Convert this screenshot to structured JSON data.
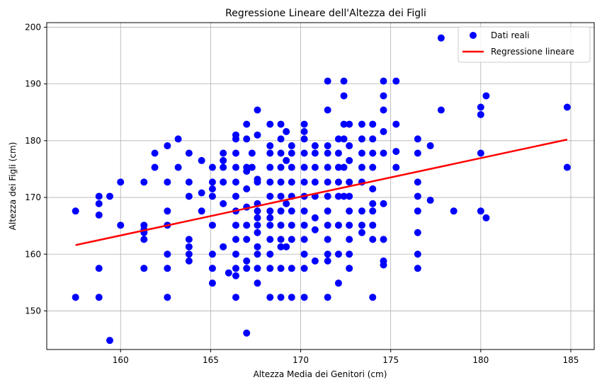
{
  "chart_data": {
    "type": "scatter",
    "title": "Regressione Lineare dell'Altezza dei Figli",
    "xlabel": "Altezza Media dei Genitori (cm)",
    "ylabel": "Altezza dei Figli (cm)",
    "xlim": [
      155.9,
      186.3
    ],
    "ylim": [
      143.2,
      200.8
    ],
    "xticks": [
      160,
      165,
      170,
      175,
      180,
      185
    ],
    "yticks": [
      150,
      160,
      170,
      180,
      190,
      200
    ],
    "grid": true,
    "legend_position": "top-right",
    "series": [
      {
        "name": "Dati reali",
        "kind": "scatter",
        "color": "#0000ff",
        "points": [
          [
            157.5,
            167.6
          ],
          [
            157.5,
            152.4
          ],
          [
            158.8,
            170.2
          ],
          [
            158.8,
            168.9
          ],
          [
            158.8,
            166.9
          ],
          [
            158.8,
            157.5
          ],
          [
            158.8,
            152.4
          ],
          [
            159.4,
            170.2
          ],
          [
            159.4,
            144.8
          ],
          [
            160.0,
            172.7
          ],
          [
            160.0,
            165.1
          ],
          [
            161.3,
            172.7
          ],
          [
            161.3,
            165.1
          ],
          [
            161.3,
            164.3
          ],
          [
            161.3,
            163.8
          ],
          [
            161.3,
            162.6
          ],
          [
            161.3,
            157.5
          ],
          [
            161.9,
            177.8
          ],
          [
            161.9,
            175.3
          ],
          [
            162.6,
            179.1
          ],
          [
            162.6,
            172.7
          ],
          [
            162.6,
            167.6
          ],
          [
            162.6,
            165.1
          ],
          [
            162.6,
            160.0
          ],
          [
            162.6,
            157.5
          ],
          [
            162.6,
            152.4
          ],
          [
            163.2,
            180.3
          ],
          [
            163.2,
            175.3
          ],
          [
            163.8,
            177.8
          ],
          [
            163.8,
            172.7
          ],
          [
            163.8,
            170.2
          ],
          [
            163.8,
            162.6
          ],
          [
            163.8,
            161.3
          ],
          [
            163.8,
            160.0
          ],
          [
            163.8,
            158.8
          ],
          [
            164.5,
            176.5
          ],
          [
            164.5,
            170.8
          ],
          [
            164.5,
            167.6
          ],
          [
            165.1,
            175.3
          ],
          [
            165.1,
            172.7
          ],
          [
            165.1,
            171.5
          ],
          [
            165.1,
            170.2
          ],
          [
            165.1,
            165.1
          ],
          [
            165.1,
            160.0
          ],
          [
            165.1,
            157.5
          ],
          [
            165.1,
            154.9
          ],
          [
            165.7,
            177.8
          ],
          [
            165.7,
            176.5
          ],
          [
            165.7,
            175.3
          ],
          [
            165.7,
            172.7
          ],
          [
            165.7,
            168.9
          ],
          [
            165.7,
            161.3
          ],
          [
            166.0,
            156.7
          ],
          [
            166.4,
            181.0
          ],
          [
            166.4,
            180.3
          ],
          [
            166.4,
            177.8
          ],
          [
            166.4,
            175.3
          ],
          [
            166.4,
            172.7
          ],
          [
            166.4,
            170.2
          ],
          [
            166.4,
            167.6
          ],
          [
            166.4,
            165.1
          ],
          [
            166.4,
            162.6
          ],
          [
            166.4,
            160.0
          ],
          [
            166.4,
            157.5
          ],
          [
            166.4,
            156.2
          ],
          [
            166.4,
            152.4
          ],
          [
            167.0,
            182.9
          ],
          [
            167.0,
            180.3
          ],
          [
            167.0,
            175.3
          ],
          [
            167.0,
            174.6
          ],
          [
            167.0,
            171.5
          ],
          [
            167.0,
            168.3
          ],
          [
            167.0,
            165.1
          ],
          [
            167.0,
            162.6
          ],
          [
            167.0,
            158.8
          ],
          [
            167.0,
            157.5
          ],
          [
            167.0,
            146.1
          ],
          [
            167.3,
            177.8
          ],
          [
            167.3,
            175.3
          ],
          [
            167.6,
            181.0
          ],
          [
            167.6,
            172.7
          ],
          [
            167.6,
            167.6
          ],
          [
            167.6,
            165.1
          ],
          [
            167.6,
            163.8
          ],
          [
            167.6,
            160.0
          ],
          [
            167.6,
            157.5
          ],
          [
            167.6,
            185.4
          ],
          [
            167.6,
            173.2
          ],
          [
            167.6,
            168.9
          ],
          [
            167.6,
            166.4
          ],
          [
            167.6,
            161.3
          ],
          [
            167.6,
            154.9
          ],
          [
            168.3,
            182.9
          ],
          [
            168.3,
            179.1
          ],
          [
            168.3,
            177.8
          ],
          [
            168.3,
            175.3
          ],
          [
            168.3,
            172.7
          ],
          [
            168.3,
            170.2
          ],
          [
            168.3,
            167.6
          ],
          [
            168.3,
            166.4
          ],
          [
            168.3,
            165.1
          ],
          [
            168.3,
            162.6
          ],
          [
            168.3,
            160.0
          ],
          [
            168.3,
            157.5
          ],
          [
            168.3,
            152.4
          ],
          [
            168.9,
            182.9
          ],
          [
            168.9,
            180.3
          ],
          [
            168.9,
            177.8
          ],
          [
            168.9,
            175.3
          ],
          [
            168.9,
            172.7
          ],
          [
            168.9,
            170.2
          ],
          [
            168.9,
            167.6
          ],
          [
            168.9,
            165.1
          ],
          [
            168.9,
            162.6
          ],
          [
            168.9,
            161.3
          ],
          [
            168.9,
            157.5
          ],
          [
            168.9,
            152.4
          ],
          [
            169.2,
            181.6
          ],
          [
            169.2,
            176.5
          ],
          [
            169.2,
            168.9
          ],
          [
            169.2,
            161.3
          ],
          [
            169.5,
            179.1
          ],
          [
            169.5,
            177.8
          ],
          [
            169.5,
            175.3
          ],
          [
            169.5,
            172.7
          ],
          [
            169.5,
            170.2
          ],
          [
            169.5,
            167.6
          ],
          [
            169.5,
            165.1
          ],
          [
            169.5,
            162.6
          ],
          [
            169.5,
            157.5
          ],
          [
            169.5,
            152.4
          ],
          [
            170.2,
            182.9
          ],
          [
            170.2,
            181.6
          ],
          [
            170.2,
            180.3
          ],
          [
            170.2,
            177.8
          ],
          [
            170.2,
            175.3
          ],
          [
            170.2,
            172.7
          ],
          [
            170.2,
            170.2
          ],
          [
            170.2,
            167.6
          ],
          [
            170.2,
            165.1
          ],
          [
            170.2,
            162.6
          ],
          [
            170.2,
            160.0
          ],
          [
            170.2,
            157.5
          ],
          [
            170.2,
            152.4
          ],
          [
            170.8,
            179.1
          ],
          [
            170.8,
            177.8
          ],
          [
            170.8,
            175.3
          ],
          [
            170.8,
            172.7
          ],
          [
            170.8,
            170.2
          ],
          [
            170.8,
            166.4
          ],
          [
            170.8,
            164.3
          ],
          [
            170.8,
            158.8
          ],
          [
            171.5,
            190.5
          ],
          [
            171.5,
            185.4
          ],
          [
            171.5,
            179.1
          ],
          [
            171.5,
            177.8
          ],
          [
            171.5,
            175.3
          ],
          [
            171.5,
            172.7
          ],
          [
            171.5,
            170.2
          ],
          [
            171.5,
            167.6
          ],
          [
            171.5,
            165.1
          ],
          [
            171.5,
            162.6
          ],
          [
            171.5,
            160.0
          ],
          [
            171.5,
            158.8
          ],
          [
            171.5,
            152.4
          ],
          [
            172.1,
            180.3
          ],
          [
            172.1,
            177.8
          ],
          [
            172.1,
            175.3
          ],
          [
            172.1,
            172.7
          ],
          [
            172.1,
            170.2
          ],
          [
            172.1,
            165.1
          ],
          [
            172.1,
            160.0
          ],
          [
            172.1,
            154.9
          ],
          [
            172.4,
            190.5
          ],
          [
            172.4,
            187.9
          ],
          [
            172.4,
            182.9
          ],
          [
            172.4,
            180.3
          ],
          [
            172.4,
            175.3
          ],
          [
            172.4,
            170.2
          ],
          [
            172.7,
            182.9
          ],
          [
            172.7,
            179.1
          ],
          [
            172.7,
            176.5
          ],
          [
            172.7,
            172.7
          ],
          [
            172.7,
            170.2
          ],
          [
            172.7,
            167.6
          ],
          [
            172.7,
            165.1
          ],
          [
            172.7,
            162.6
          ],
          [
            172.7,
            160.0
          ],
          [
            172.7,
            157.5
          ],
          [
            173.4,
            182.9
          ],
          [
            173.4,
            180.3
          ],
          [
            173.4,
            177.8
          ],
          [
            173.4,
            175.3
          ],
          [
            173.4,
            172.7
          ],
          [
            173.4,
            167.6
          ],
          [
            173.4,
            165.1
          ],
          [
            173.4,
            163.8
          ],
          [
            174.0,
            182.9
          ],
          [
            174.0,
            180.3
          ],
          [
            174.0,
            177.8
          ],
          [
            174.0,
            175.3
          ],
          [
            174.0,
            171.5
          ],
          [
            174.0,
            168.9
          ],
          [
            174.0,
            167.6
          ],
          [
            174.0,
            165.1
          ],
          [
            174.0,
            162.6
          ],
          [
            174.0,
            152.4
          ],
          [
            174.6,
            190.5
          ],
          [
            174.6,
            187.9
          ],
          [
            174.6,
            185.4
          ],
          [
            174.6,
            181.6
          ],
          [
            174.6,
            177.8
          ],
          [
            174.6,
            168.9
          ],
          [
            174.6,
            162.6
          ],
          [
            174.6,
            158.8
          ],
          [
            174.6,
            158.1
          ],
          [
            175.3,
            190.5
          ],
          [
            175.3,
            182.9
          ],
          [
            175.3,
            178.1
          ],
          [
            175.3,
            175.3
          ],
          [
            176.5,
            180.3
          ],
          [
            176.5,
            177.8
          ],
          [
            176.5,
            172.7
          ],
          [
            176.5,
            170.2
          ],
          [
            176.5,
            167.6
          ],
          [
            176.5,
            163.8
          ],
          [
            176.5,
            160.0
          ],
          [
            176.5,
            157.5
          ],
          [
            177.2,
            179.1
          ],
          [
            177.2,
            169.5
          ],
          [
            177.8,
            198.1
          ],
          [
            177.8,
            185.4
          ],
          [
            178.5,
            167.6
          ],
          [
            180.0,
            185.9
          ],
          [
            180.0,
            184.6
          ],
          [
            180.0,
            177.8
          ],
          [
            180.0,
            167.6
          ],
          [
            180.3,
            166.4
          ],
          [
            180.3,
            187.9
          ],
          [
            184.8,
            185.9
          ],
          [
            184.8,
            175.3
          ]
        ]
      },
      {
        "name": "Regressione lineare",
        "kind": "line",
        "color": "#ff0000",
        "points": [
          [
            157.5,
            161.6
          ],
          [
            184.8,
            180.2
          ]
        ]
      }
    ]
  }
}
